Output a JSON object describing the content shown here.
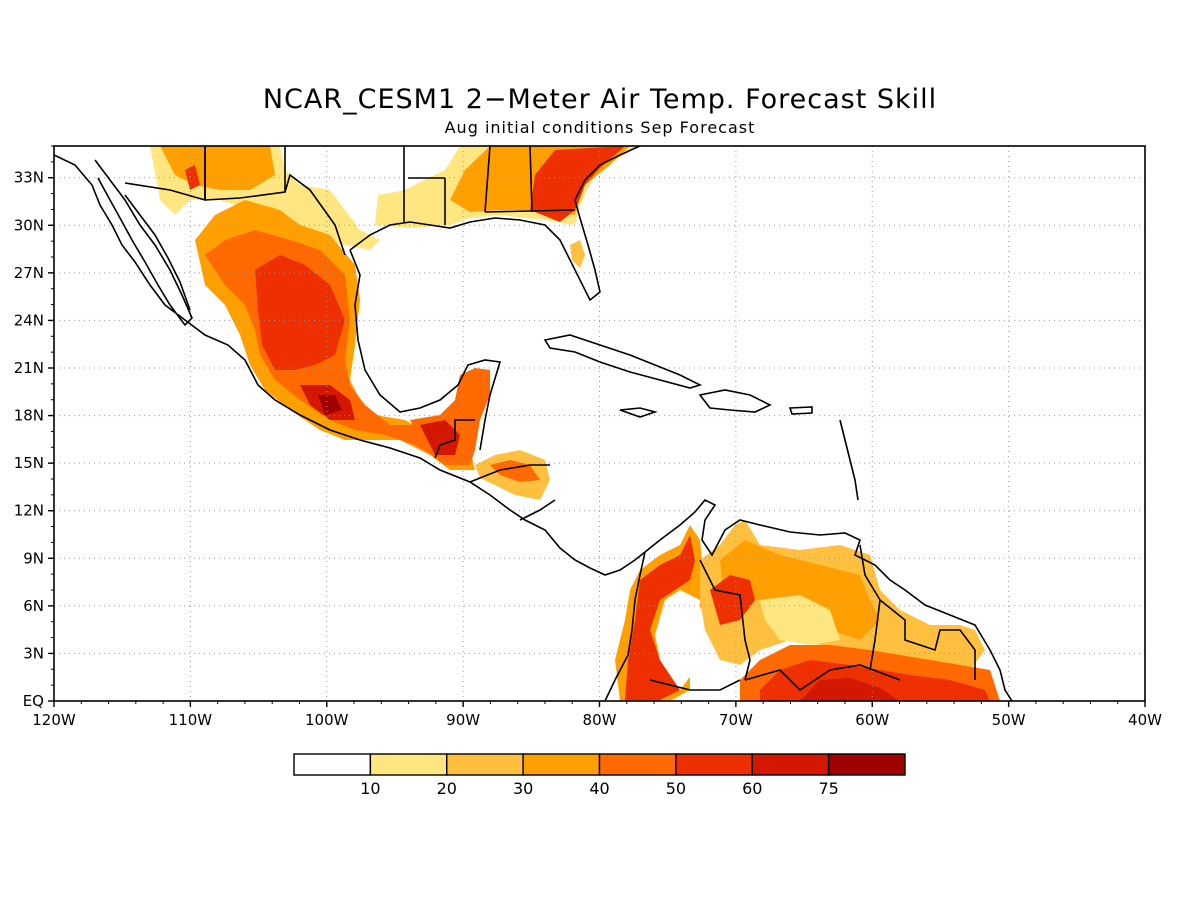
{
  "title": "NCAR_CESM1 2−Meter Air Temp. Forecast Skill",
  "subtitle": "Aug initial conditions  Sep Forecast",
  "map": {
    "lon_range": [
      -120,
      -40
    ],
    "lat_range": [
      0,
      35
    ],
    "lon_ticks": [
      "120W",
      "110W",
      "100W",
      "90W",
      "80W",
      "70W",
      "60W",
      "50W",
      "40W"
    ],
    "lat_ticks": [
      "EQ",
      "3N",
      "6N",
      "9N",
      "12N",
      "15N",
      "18N",
      "21N",
      "24N",
      "27N",
      "30N",
      "33N"
    ],
    "gridlines": "dotted"
  },
  "colorbar": {
    "labels": [
      "10",
      "20",
      "30",
      "40",
      "50",
      "60",
      "75"
    ],
    "colors": [
      "#ffffff",
      "#ffe680",
      "#ffc040",
      "#ffa000",
      "#ff6a00",
      "#ee3000",
      "#d41800",
      "#a00000"
    ]
  },
  "skill_regions": [
    {
      "name": "mexico-plateau",
      "level": 4
    },
    {
      "name": "mexico-core",
      "level": 5
    },
    {
      "name": "south-mexico",
      "level": 6
    },
    {
      "name": "yucatan",
      "level": 5
    },
    {
      "name": "southeast-us",
      "level": 5
    },
    {
      "name": "honduras",
      "level": 4
    },
    {
      "name": "colombia-west",
      "level": 5
    },
    {
      "name": "venezuela-guyana",
      "level": 3
    },
    {
      "name": "amazon-north",
      "level": 6
    }
  ]
}
